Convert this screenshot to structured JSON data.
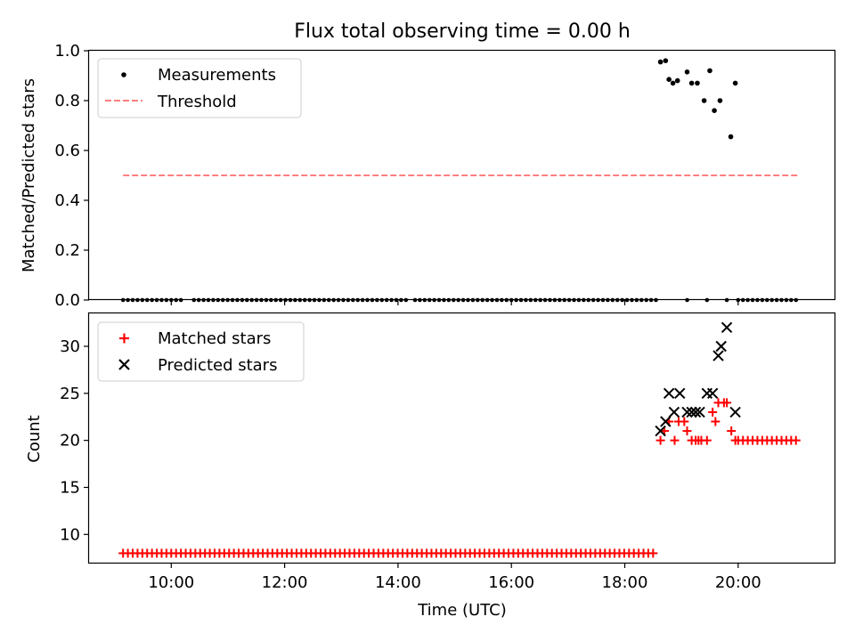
{
  "chart_data": [
    {
      "type": "scatter",
      "title": "Flux total observing time = 0.00 h",
      "xlabel": "",
      "ylabel": "Matched/Predicted stars",
      "xlim": [
        8.55,
        21.7
      ],
      "ylim": [
        0.0,
        1.0
      ],
      "yticks": [
        0.0,
        0.2,
        0.4,
        0.6,
        0.8,
        1.0
      ],
      "ytick_labels": [
        "0.0",
        "0.2",
        "0.4",
        "0.6",
        "0.8",
        "1.0"
      ],
      "xticks": [
        10,
        12,
        14,
        16,
        18,
        20
      ],
      "legend_position": "top-left",
      "legend": [
        {
          "label": "Measurements",
          "marker": "dot",
          "color": "#000000"
        },
        {
          "label": "Threshold",
          "marker": "dashed-line",
          "color": "#ff7f7f"
        }
      ],
      "threshold": {
        "value": 0.5,
        "x_start": 9.15,
        "x_end": 21.05,
        "color": "#ff7f7f"
      },
      "zero_ranges": [
        [
          9.15,
          10.25
        ],
        [
          10.4,
          14.2
        ],
        [
          14.3,
          18.55
        ],
        [
          20.0,
          21.1
        ]
      ],
      "zero_step": 0.085,
      "zero_extra_x": [
        19.1,
        19.45,
        19.8
      ],
      "points": {
        "x": [
          18.63,
          18.72,
          18.78,
          18.85,
          18.93,
          19.1,
          19.18,
          19.28,
          19.4,
          19.5,
          19.58,
          19.68,
          19.87,
          19.95
        ],
        "y": [
          0.955,
          0.96,
          0.885,
          0.87,
          0.88,
          0.915,
          0.87,
          0.87,
          0.8,
          0.92,
          0.76,
          0.8,
          0.655,
          0.87
        ]
      }
    },
    {
      "type": "scatter",
      "title": "",
      "xlabel": "Time (UTC)",
      "ylabel": "Count",
      "xlim": [
        8.55,
        21.7
      ],
      "ylim": [
        7.0,
        33.5
      ],
      "yticks": [
        10,
        15,
        20,
        25,
        30
      ],
      "ytick_labels": [
        "10",
        "15",
        "20",
        "25",
        "30"
      ],
      "xticks": [
        10,
        12,
        14,
        16,
        18,
        20
      ],
      "xtick_labels": [
        "10:00",
        "12:00",
        "14:00",
        "16:00",
        "18:00",
        "20:00"
      ],
      "legend_position": "top-left",
      "legend": [
        {
          "label": "Matched stars",
          "marker": "plus",
          "color": "#ff0000"
        },
        {
          "label": "Predicted stars",
          "marker": "x",
          "color": "#000000"
        }
      ],
      "matched_constant_segments": [
        {
          "x_start": 9.15,
          "x_end": 18.55,
          "value": 8,
          "step": 0.085
        },
        {
          "x_start": 20.0,
          "x_end": 21.1,
          "value": 20,
          "step": 0.085
        }
      ],
      "matched": {
        "x": [
          18.63,
          18.7,
          18.78,
          18.88,
          18.95,
          19.05,
          19.1,
          19.18,
          19.25,
          19.3,
          19.35,
          19.45,
          19.55,
          19.6,
          19.65,
          19.75,
          19.8,
          19.88,
          19.95
        ],
        "y": [
          20,
          21,
          22,
          20,
          22,
          22,
          21,
          20,
          20,
          20,
          20,
          20,
          23,
          22,
          24,
          24,
          24,
          21,
          20
        ]
      },
      "predicted": {
        "x": [
          18.63,
          18.72,
          18.78,
          18.87,
          18.97,
          19.1,
          19.18,
          19.25,
          19.32,
          19.45,
          19.55,
          19.65,
          19.7,
          19.8,
          19.95
        ],
        "y": [
          21,
          22,
          25,
          23,
          25,
          23,
          23,
          23,
          23,
          25,
          25,
          29,
          30,
          32,
          23
        ]
      }
    }
  ]
}
